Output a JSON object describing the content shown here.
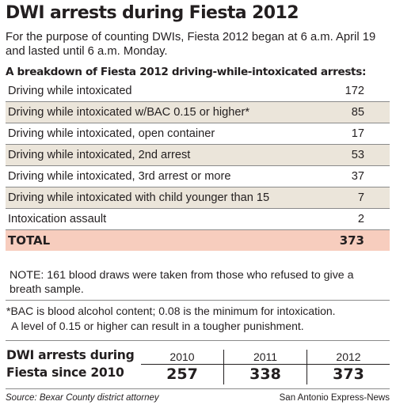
{
  "title": "DWI arrests during Fiesta 2012",
  "subtitle_lines": [
    "For the purpose of counting DWIs, Fiesta 2012 began at 6 a.m. April 19",
    "and lasted until 6 a.m. Monday."
  ],
  "breakdown_heading": "A breakdown of Fiesta 2012 driving-while-intoxicated arrests:",
  "note_lines": [
    "NOTE: 161 blood draws were taken from those who refused to give a",
    "breath sample."
  ],
  "footnote_lines": [
    "*BAC is blood alcohol content; 0.08 is the minimum for intoxication.",
    "A level of 0.15 or higher can result in a tougher punishment."
  ],
  "since_title_lines": [
    "DWI arrests during",
    "Fiesta since 2010"
  ],
  "source": "Source: Bexar County district attorney",
  "credit": "San Antonio Express-News",
  "colors": {
    "shade": "#ebe5da",
    "total_shade": "#f7cdbe",
    "text": "#231f20"
  },
  "chart_data": [
    {
      "type": "table",
      "title": "A breakdown of Fiesta 2012 driving-while-intoxicated arrests:",
      "rows": [
        {
          "label": "Driving while intoxicated",
          "value": "172"
        },
        {
          "label": "Driving while intoxicated w/BAC 0.15 or higher*",
          "value": "85"
        },
        {
          "label": "Driving while intoxicated, open container",
          "value": "17"
        },
        {
          "label": "Driving while intoxicated, 2nd arrest",
          "value": "53"
        },
        {
          "label": "Driving while intoxicated, 3rd arrest or more",
          "value": "37"
        },
        {
          "label": "Driving while intoxicated with child younger than 15",
          "value": "7"
        },
        {
          "label": "Intoxication assault",
          "value": "2"
        }
      ],
      "total": {
        "label": "TOTAL",
        "value": "373"
      }
    },
    {
      "type": "table",
      "categories": [
        "2010",
        "2011",
        "2012"
      ],
      "values": [
        257,
        338,
        373
      ]
    }
  ]
}
